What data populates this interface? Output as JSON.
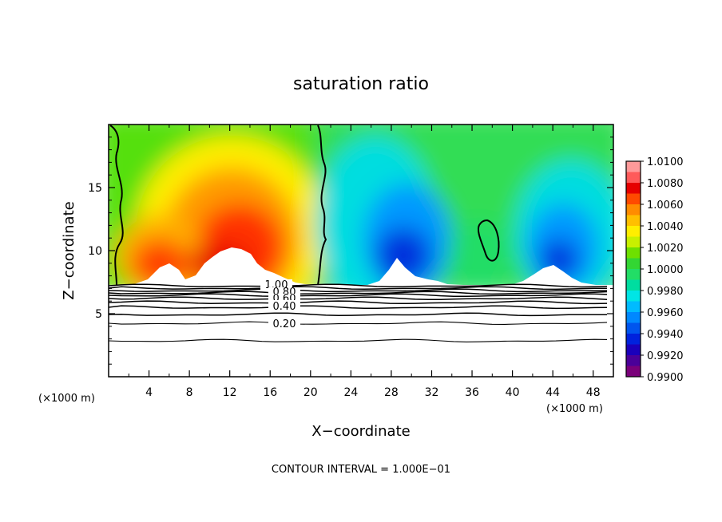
{
  "chart_data": {
    "type": "heatmap",
    "title": "saturation ratio",
    "xlabel": "X−coordinate",
    "ylabel": "Z−coordinate",
    "x_unit_left": "(×1000 m)",
    "x_unit_right": "(×1000 m)",
    "footer": "CONTOUR INTERVAL = 1.000E−01",
    "xlim": [
      0,
      50
    ],
    "ylim": [
      0,
      20
    ],
    "x_ticks": [
      4,
      8,
      12,
      16,
      20,
      24,
      28,
      32,
      36,
      40,
      44,
      48
    ],
    "x_tick_labels": [
      "4",
      "8",
      "12",
      "16",
      "20",
      "24",
      "28",
      "32",
      "36",
      "40",
      "44",
      "48"
    ],
    "y_ticks": [
      5,
      10,
      15
    ],
    "y_tick_labels": [
      "5",
      "10",
      "15"
    ],
    "colorbar": {
      "min": 0.99,
      "max": 1.01,
      "labels": [
        "1.0100",
        "1.0080",
        "1.0060",
        "1.0040",
        "1.0020",
        "1.0000",
        "0.9980",
        "0.9960",
        "0.9940",
        "0.9920",
        "0.9900"
      ],
      "colors": [
        "#ff9a9a",
        "#ff5a5a",
        "#e60000",
        "#ff4a00",
        "#ff8c00",
        "#ffbf00",
        "#ffee00",
        "#c8f000",
        "#6ee000",
        "#33d633",
        "#22dd66",
        "#00dda0",
        "#00e5e5",
        "#00bbff",
        "#0088ff",
        "#0055ee",
        "#0022dd",
        "#1a00bb",
        "#4a0099",
        "#7a007a"
      ]
    },
    "contour_labels": [
      "1.00",
      "0.80",
      "0.60",
      "0.40",
      "0.20"
    ],
    "contour_levels": [
      1.0,
      0.9,
      0.8,
      0.7,
      0.6,
      0.5,
      0.4,
      0.3,
      0.2,
      0.1
    ],
    "grid": false,
    "legend": "colorbar-right"
  }
}
